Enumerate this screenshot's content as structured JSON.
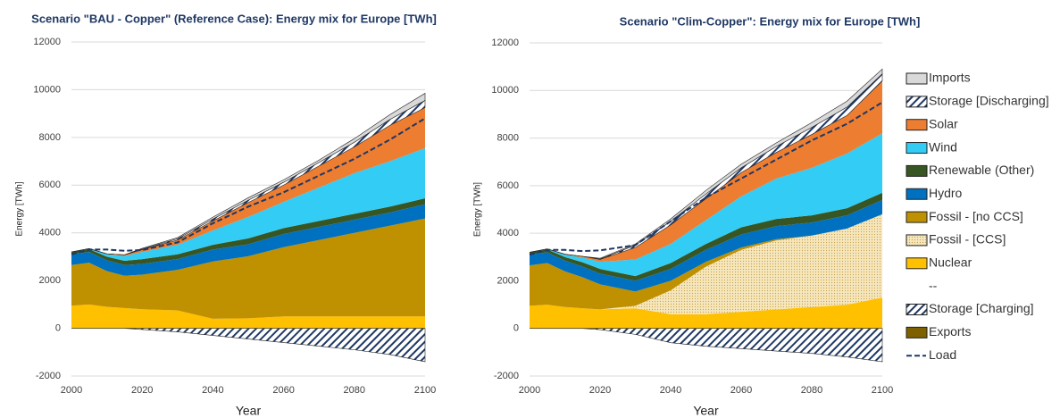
{
  "chart_data": [
    {
      "type": "area",
      "title": "Scenario \"BAU - Copper\" (Reference Case): Energy mix for Europe [TWh]",
      "x_label": "Year",
      "y_label": "Energy [TWh]",
      "x": [
        2000,
        2005,
        2010,
        2015,
        2020,
        2030,
        2040,
        2050,
        2060,
        2070,
        2080,
        2090,
        2100
      ],
      "xlim": [
        2000,
        2100
      ],
      "xticks": [
        2000,
        2020,
        2040,
        2060,
        2080,
        2100
      ],
      "ylim": [
        -2000,
        12000
      ],
      "yticks": [
        -2000,
        0,
        2000,
        4000,
        6000,
        8000,
        10000,
        12000
      ],
      "grid": true,
      "series": [
        {
          "color": "#ffc000",
          "values": [
            950,
            1000,
            900,
            850,
            800,
            750,
            400,
            420,
            500,
            500,
            500,
            500,
            500
          ]
        },
        {
          "color": "#f2e0a8",
          "pattern": "dots",
          "values": [
            0,
            0,
            0,
            0,
            0,
            0,
            0,
            0,
            0,
            0,
            0,
            0,
            0
          ]
        },
        {
          "color": "#bf9000",
          "values": [
            1700,
            1750,
            1500,
            1350,
            1450,
            1700,
            2400,
            2600,
            2900,
            3200,
            3500,
            3800,
            4100
          ]
        },
        {
          "color": "#0070c0",
          "values": [
            450,
            450,
            450,
            450,
            450,
            450,
            500,
            500,
            550,
            550,
            550,
            550,
            600
          ]
        },
        {
          "color": "#375623",
          "values": [
            100,
            120,
            150,
            180,
            200,
            200,
            200,
            250,
            250,
            250,
            250,
            250,
            250
          ]
        },
        {
          "color": "#33ccf5",
          "values": [
            0,
            20,
            100,
            200,
            300,
            400,
            600,
            900,
            1100,
            1400,
            1700,
            1900,
            2100
          ]
        },
        {
          "color": "#ed7d31",
          "values": [
            0,
            0,
            20,
            50,
            100,
            200,
            400,
            600,
            700,
            900,
            1100,
            1500,
            1700
          ]
        },
        {
          "color": "#1f3864",
          "pattern": "hatch",
          "values": [
            0,
            0,
            0,
            0,
            20,
            50,
            80,
            100,
            120,
            150,
            200,
            250,
            300
          ]
        },
        {
          "color": "#d9d9d9",
          "values": [
            0,
            0,
            0,
            0,
            30,
            50,
            80,
            100,
            100,
            100,
            150,
            200,
            300
          ]
        },
        {
          "color": "#1f3864",
          "pattern": "hatch",
          "values": [
            0,
            0,
            0,
            0,
            -50,
            -150,
            -300,
            -450,
            -600,
            -750,
            -900,
            -1100,
            -1400
          ]
        },
        {
          "color": "#7f6000",
          "values": [
            0,
            0,
            0,
            0,
            0,
            0,
            0,
            0,
            0,
            0,
            0,
            0,
            0
          ]
        }
      ],
      "line_series": {
        "color": "#1f3864",
        "values": [
          3100,
          3300,
          3300,
          3250,
          3280,
          3600,
          4400,
          5100,
          5700,
          6400,
          7100,
          7900,
          8800
        ]
      }
    },
    {
      "type": "area",
      "title": "Scenario \"Clim-Copper\": Energy mix for Europe [TWh]",
      "x_label": "Year",
      "y_label": "Energy [TWh]",
      "x": [
        2000,
        2005,
        2010,
        2015,
        2020,
        2030,
        2040,
        2050,
        2060,
        2070,
        2080,
        2090,
        2100
      ],
      "xlim": [
        2000,
        2100
      ],
      "xticks": [
        2000,
        2020,
        2040,
        2060,
        2080,
        2100
      ],
      "ylim": [
        -2000,
        12000
      ],
      "yticks": [
        -2000,
        0,
        2000,
        4000,
        6000,
        8000,
        10000,
        12000
      ],
      "grid": true,
      "legend": "right",
      "legend_separator": "--",
      "series": [
        {
          "name": "Nuclear",
          "color": "#ffc000",
          "values": [
            950,
            1000,
            900,
            850,
            800,
            850,
            600,
            600,
            700,
            800,
            900,
            1000,
            1300
          ]
        },
        {
          "name": "Fossil - [CCS]",
          "color": "#f2e0a8",
          "pattern": "dots",
          "values": [
            0,
            0,
            0,
            0,
            0,
            100,
            1000,
            2000,
            2600,
            2900,
            3000,
            3200,
            3500
          ]
        },
        {
          "name": "Fossil - [no CCS]",
          "color": "#bf9000",
          "values": [
            1700,
            1750,
            1500,
            1300,
            1050,
            600,
            400,
            200,
            100,
            50,
            0,
            0,
            0
          ]
        },
        {
          "name": "Hydro",
          "color": "#0070c0",
          "values": [
            450,
            450,
            450,
            450,
            450,
            450,
            500,
            500,
            550,
            550,
            550,
            550,
            600
          ]
        },
        {
          "name": "Renewable (Other)",
          "color": "#375623",
          "values": [
            100,
            120,
            150,
            180,
            200,
            200,
            250,
            250,
            300,
            300,
            300,
            300,
            300
          ]
        },
        {
          "name": "Wind",
          "color": "#33ccf5",
          "values": [
            0,
            20,
            100,
            200,
            300,
            700,
            800,
            1000,
            1300,
            1700,
            2000,
            2300,
            2500
          ]
        },
        {
          "name": "Solar",
          "color": "#ed7d31",
          "values": [
            0,
            0,
            20,
            50,
            100,
            500,
            800,
            900,
            1000,
            1100,
            1400,
            1600,
            2200
          ]
        },
        {
          "name": "Storage [Discharging]",
          "color": "#1f3864",
          "pattern": "hatch",
          "values": [
            0,
            0,
            0,
            0,
            20,
            100,
            150,
            200,
            200,
            250,
            300,
            350,
            300
          ]
        },
        {
          "name": "Imports",
          "color": "#d9d9d9",
          "values": [
            0,
            0,
            0,
            0,
            30,
            50,
            100,
            150,
            150,
            150,
            200,
            250,
            200
          ]
        },
        {
          "name": "Storage [Charging]",
          "color": "#1f3864",
          "pattern": "hatch",
          "values": [
            0,
            0,
            0,
            0,
            -50,
            -250,
            -600,
            -750,
            -850,
            -950,
            -1050,
            -1200,
            -1400
          ]
        },
        {
          "name": "Exports",
          "color": "#7f6000",
          "values": [
            0,
            0,
            0,
            0,
            0,
            0,
            0,
            0,
            0,
            0,
            0,
            0,
            0
          ]
        }
      ],
      "line_series": {
        "name": "Load",
        "color": "#1f3864",
        "values": [
          3100,
          3300,
          3300,
          3250,
          3280,
          3500,
          4500,
          5500,
          6300,
          7100,
          7900,
          8600,
          9500
        ]
      }
    }
  ]
}
